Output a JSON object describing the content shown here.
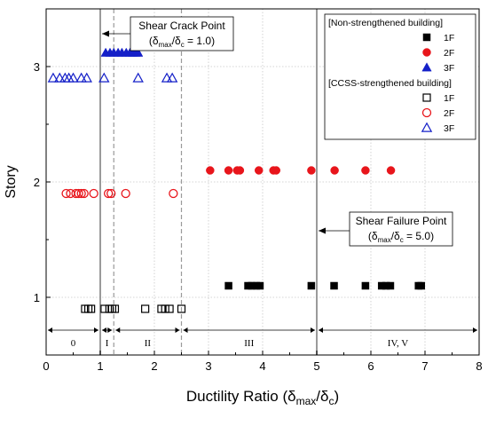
{
  "chart_data": {
    "type": "scatter",
    "xlabel": "Ductility Ratio (δmax/δc)",
    "xlabel_parts": [
      "Ductility Ratio (δ",
      "max",
      "/δ",
      "c",
      ")"
    ],
    "ylabel": "Story",
    "xlim": [
      0,
      8
    ],
    "ylim": [
      0.5,
      3.5
    ],
    "xticks": [
      "0",
      "1",
      "2",
      "3",
      "4",
      "5",
      "6",
      "7",
      "8"
    ],
    "yticks": [
      "1",
      "2",
      "3"
    ],
    "grid": true,
    "legend_position": "top-right",
    "legend_groups": [
      {
        "title": "[Non-strengthened building]",
        "entries": [
          {
            "series": 0,
            "label": "1F"
          },
          {
            "series": 1,
            "label": "2F"
          },
          {
            "series": 2,
            "label": "3F"
          }
        ]
      },
      {
        "title": "[CCSS-strengthened building]",
        "entries": [
          {
            "series": 3,
            "label": "1F"
          },
          {
            "series": 4,
            "label": "2F"
          },
          {
            "series": 5,
            "label": "3F"
          }
        ]
      }
    ],
    "series": [
      {
        "group": "Non-strengthened building",
        "name": "1F",
        "marker": "square",
        "filled": true,
        "color": "#000000",
        "y": 1.1,
        "x": [
          3.37,
          3.73,
          3.8,
          3.88,
          3.95,
          4.9,
          5.32,
          5.9,
          6.2,
          6.28,
          6.36,
          6.88,
          6.93
        ]
      },
      {
        "group": "Non-strengthened building",
        "name": "2F",
        "marker": "circle",
        "filled": true,
        "color": "#e8151b",
        "y": 2.1,
        "x": [
          3.03,
          3.37,
          3.53,
          3.58,
          3.93,
          4.2,
          4.25,
          4.9,
          5.33,
          5.9,
          6.37
        ]
      },
      {
        "group": "Non-strengthened building",
        "name": "3F",
        "marker": "triangle",
        "filled": true,
        "color": "#1520c8",
        "y": 3.12,
        "x": [
          1.1,
          1.18,
          1.25,
          1.33,
          1.4,
          1.48,
          1.55,
          1.6,
          1.65,
          1.7
        ]
      },
      {
        "group": "CCSS-strengthened building",
        "name": "1F",
        "marker": "square",
        "filled": false,
        "color": "#000000",
        "y": 0.9,
        "x": [
          0.72,
          0.78,
          0.83,
          1.08,
          1.17,
          1.22,
          1.27,
          1.83,
          2.13,
          2.2,
          2.28,
          2.5
        ]
      },
      {
        "group": "CCSS-strengthened building",
        "name": "2F",
        "marker": "circle",
        "filled": false,
        "color": "#e8151b",
        "y": 1.9,
        "x": [
          0.37,
          0.45,
          0.55,
          0.6,
          0.65,
          0.7,
          0.88,
          1.15,
          1.2,
          1.47,
          2.35
        ]
      },
      {
        "group": "CCSS-strengthened building",
        "name": "3F",
        "marker": "triangle",
        "filled": false,
        "color": "#1520c8",
        "y": 2.9,
        "x": [
          0.13,
          0.25,
          0.35,
          0.42,
          0.5,
          0.65,
          0.75,
          1.07,
          1.7,
          2.23,
          2.33
        ]
      }
    ],
    "reference_lines": [
      {
        "x": 1.0,
        "style": "solid",
        "color": "#9a9a9a"
      },
      {
        "x": 5.0,
        "style": "solid",
        "color": "#9a9a9a"
      },
      {
        "x": 1.25,
        "style": "dashed",
        "color": "#9a9a9a"
      },
      {
        "x": 2.5,
        "style": "dashed",
        "color": "#9a9a9a"
      }
    ],
    "zones": [
      {
        "label": "0",
        "x_start": 0,
        "x_end": 1.0
      },
      {
        "label": "I",
        "x_start": 1.0,
        "x_end": 1.25
      },
      {
        "label": "II",
        "x_start": 1.25,
        "x_end": 2.5
      },
      {
        "label": "III",
        "x_start": 2.5,
        "x_end": 5.0
      },
      {
        "label": "IV, V",
        "x_start": 5.0,
        "x_end": 8.0
      }
    ],
    "annotations": [
      {
        "name": "shear-crack-point",
        "title": "Shear Crack Point",
        "ratio_value": "1.0",
        "target_x": 1.0
      },
      {
        "name": "shear-failure-point",
        "title": "Shear Failure Point",
        "ratio_value": "5.0",
        "target_x": 5.0
      }
    ]
  }
}
